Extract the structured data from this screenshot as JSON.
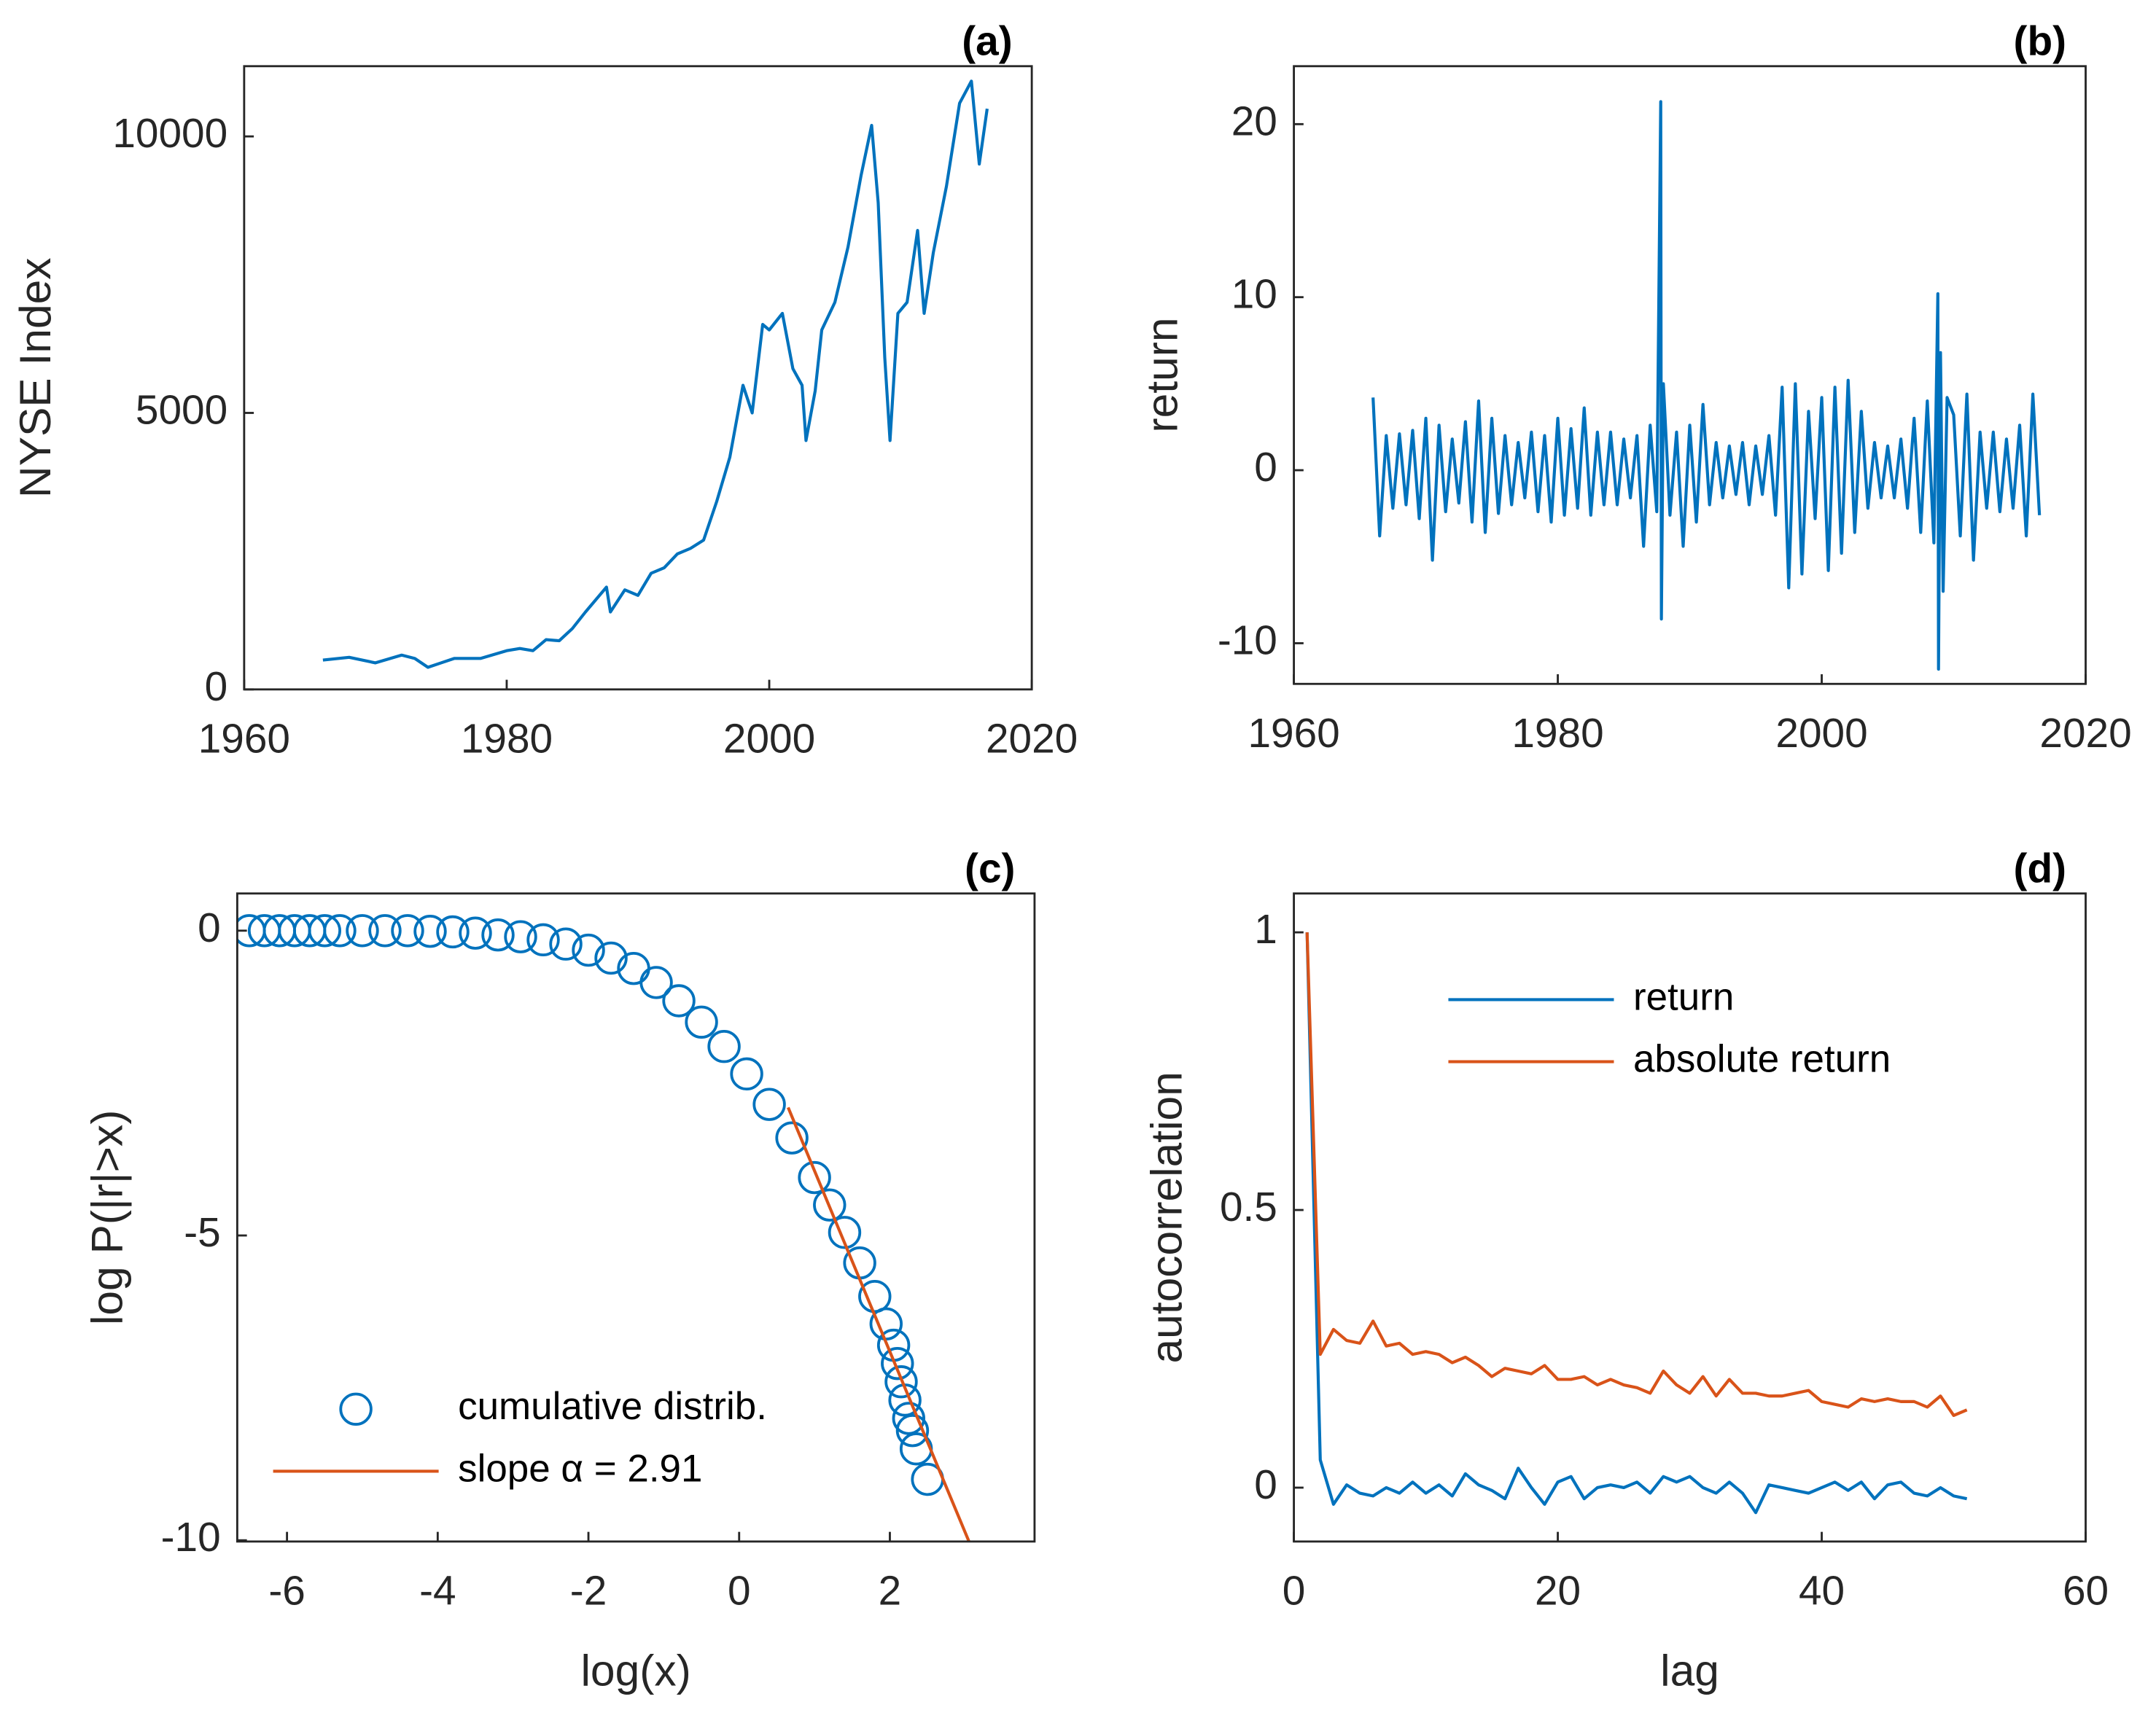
{
  "chart_data": [
    {
      "type": "line",
      "title": "(a)",
      "ylabel": "NYSE Index",
      "color": "#0072bd",
      "xlim": [
        1960,
        2020
      ],
      "xticks": [
        1960,
        1980,
        2000,
        2020
      ],
      "ylim": [
        0,
        11270
      ],
      "yticks": [
        0,
        5000,
        10000
      ],
      "x": [
        1966,
        1968,
        1970,
        1972,
        1973,
        1974,
        1975,
        1976,
        1978,
        1980,
        1981,
        1982,
        1983,
        1984,
        1985,
        1986,
        1987.6,
        1987.9,
        1989,
        1990,
        1991,
        1992,
        1993,
        1994,
        1995,
        1996,
        1997,
        1998,
        1998.7,
        1999.5,
        2000,
        2001,
        2001.8,
        2002.5,
        2002.8,
        2003.5,
        2004,
        2005,
        2006,
        2007,
        2007.8,
        2008.3,
        2008.8,
        2009.2,
        2009.8,
        2010.5,
        2011.3,
        2011.8,
        2012.5,
        2013.5,
        2014.5,
        2015.4,
        2016,
        2016.6
      ],
      "values": [
        530,
        580,
        480,
        620,
        560,
        400,
        480,
        560,
        560,
        700,
        740,
        700,
        900,
        880,
        1100,
        1400,
        1850,
        1400,
        1800,
        1700,
        2100,
        2200,
        2450,
        2550,
        2700,
        3400,
        4200,
        5500,
        5000,
        6600,
        6500,
        6800,
        5800,
        5500,
        4500,
        5400,
        6500,
        7000,
        8000,
        9300,
        10200,
        8800,
        6000,
        4500,
        6800,
        7000,
        8300,
        6800,
        7900,
        9100,
        10600,
        11000,
        9500,
        10500
      ]
    },
    {
      "type": "line",
      "title": "(b)",
      "ylabel": "return",
      "color": "#0072bd",
      "xlim": [
        1960,
        2020
      ],
      "xticks": [
        1960,
        1980,
        2000,
        2020
      ],
      "ylim": [
        -12.35,
        23.35
      ],
      "yticks": [
        -10,
        0,
        10,
        20
      ],
      "x": [
        1966,
        1966.5,
        1967,
        1967.5,
        1968,
        1968.5,
        1969,
        1969.5,
        1970,
        1970.5,
        1971,
        1971.5,
        1972,
        1972.5,
        1973,
        1973.5,
        1974,
        1974.5,
        1975,
        1975.5,
        1976,
        1976.5,
        1977,
        1977.5,
        1978,
        1978.5,
        1979,
        1979.5,
        1980,
        1980.5,
        1981,
        1981.5,
        1982,
        1982.5,
        1983,
        1983.5,
        1984,
        1984.5,
        1985,
        1985.5,
        1986,
        1986.5,
        1987,
        1987.5,
        1987.8,
        1987.85,
        1988,
        1988.5,
        1989,
        1989.5,
        1990,
        1990.5,
        1991,
        1991.5,
        1992,
        1992.5,
        1993,
        1993.5,
        1994,
        1994.5,
        1995,
        1995.5,
        1996,
        1996.5,
        1997,
        1997.5,
        1998,
        1998.5,
        1999,
        1999.5,
        2000,
        2000.5,
        2001,
        2001.5,
        2002,
        2002.5,
        2003,
        2003.5,
        2004,
        2004.5,
        2005,
        2005.5,
        2006,
        2006.5,
        2007,
        2007.5,
        2008,
        2008.5,
        2008.8,
        2008.85,
        2009,
        2009.2,
        2009.5,
        2010,
        2010.5,
        2011,
        2011.5,
        2012,
        2012.5,
        2013,
        2013.5,
        2014,
        2014.5,
        2015,
        2015.5,
        2016,
        2016.5
      ],
      "values": [
        4.2,
        -3.8,
        2.0,
        -2.2,
        2.1,
        -2.0,
        2.3,
        -2.8,
        3.0,
        -5.2,
        2.6,
        -2.4,
        1.8,
        -1.9,
        2.8,
        -3.0,
        4.0,
        -3.6,
        3.0,
        -2.5,
        2.0,
        -2.0,
        1.6,
        -1.6,
        2.2,
        -2.4,
        2.0,
        -3.0,
        3.0,
        -2.6,
        2.4,
        -2.2,
        3.6,
        -2.6,
        2.2,
        -2.0,
        2.2,
        -2.0,
        1.8,
        -1.6,
        2.0,
        -4.4,
        2.6,
        -2.4,
        21.3,
        -8.6,
        5.0,
        -2.6,
        2.2,
        -4.4,
        2.6,
        -3.0,
        3.8,
        -2.0,
        1.6,
        -1.6,
        1.4,
        -1.4,
        1.6,
        -2.0,
        1.4,
        -1.4,
        2.0,
        -2.6,
        4.8,
        -6.8,
        5.0,
        -6.0,
        3.4,
        -2.8,
        4.2,
        -5.8,
        4.8,
        -4.8,
        5.2,
        -3.6,
        3.4,
        -2.2,
        1.6,
        -1.6,
        1.4,
        -1.6,
        1.8,
        -2.2,
        3.0,
        -3.6,
        4.0,
        -4.2,
        10.2,
        -11.5,
        6.8,
        -7.0,
        4.2,
        3.2,
        -3.8,
        4.4,
        -5.2,
        2.2,
        -2.2,
        2.2,
        -2.4,
        1.8,
        -2.2,
        2.6,
        -3.8,
        4.4,
        -2.6
      ]
    },
    {
      "type": "scatter",
      "title": "(c)",
      "xlabel": "log(x)",
      "ylabel": "log P(|r|>x)",
      "legend": "lower left",
      "xlim": [
        -6.66,
        3.92
      ],
      "xticks": [
        -6,
        -4,
        -2,
        0,
        2
      ],
      "ylim": [
        -10.02,
        0.61
      ],
      "yticks": [
        -10,
        -5,
        0
      ],
      "series": [
        {
          "name": "cumulative distrib.",
          "type": "scatter",
          "color": "#0072bd",
          "x": [
            -6.5,
            -6.3,
            -6.1,
            -5.9,
            -5.7,
            -5.5,
            -5.3,
            -5.0,
            -4.7,
            -4.4,
            -4.1,
            -3.8,
            -3.5,
            -3.2,
            -2.9,
            -2.6,
            -2.3,
            -2.0,
            -1.7,
            -1.4,
            -1.1,
            -0.8,
            -0.5,
            -0.2,
            0.1,
            0.4,
            0.7,
            1.0,
            1.2,
            1.4,
            1.6,
            1.8,
            1.95,
            2.05,
            2.1,
            2.15,
            2.2,
            2.25,
            2.3,
            2.35,
            2.5
          ],
          "values": [
            0,
            0,
            0,
            0,
            0,
            0,
            0,
            0,
            0,
            0,
            -0.01,
            -0.02,
            -0.04,
            -0.07,
            -0.1,
            -0.15,
            -0.22,
            -0.32,
            -0.45,
            -0.62,
            -0.85,
            -1.15,
            -1.5,
            -1.9,
            -2.35,
            -2.85,
            -3.4,
            -4.05,
            -4.5,
            -4.95,
            -5.45,
            -6.0,
            -6.45,
            -6.8,
            -7.1,
            -7.4,
            -7.7,
            -8.0,
            -8.2,
            -8.5,
            -9.0
          ]
        },
        {
          "name": "slope α = 2.91",
          "type": "line",
          "color": "#d95319",
          "x": [
            0.65,
            3.05
          ],
          "values": [
            -2.9,
            -10.02
          ]
        }
      ]
    },
    {
      "type": "line",
      "title": "(d)",
      "xlabel": "lag",
      "ylabel": "autocorrelation",
      "legend": "upper center",
      "xlim": [
        0,
        60
      ],
      "xticks": [
        0,
        20,
        40,
        60
      ],
      "ylim": [
        -0.097,
        1.07
      ],
      "yticks": [
        0,
        0.5,
        1
      ],
      "series": [
        {
          "name": "return",
          "color": "#0072bd",
          "x": [
            1,
            2,
            3,
            4,
            5,
            6,
            7,
            8,
            9,
            10,
            11,
            12,
            13,
            14,
            15,
            16,
            17,
            18,
            19,
            20,
            21,
            22,
            23,
            24,
            25,
            26,
            27,
            28,
            29,
            30,
            31,
            32,
            33,
            34,
            35,
            36,
            37,
            38,
            39,
            40,
            41,
            42,
            43,
            44,
            45,
            46,
            47,
            48,
            49,
            50,
            51
          ],
          "values": [
            1,
            0.05,
            -0.03,
            0.005,
            -0.01,
            -0.015,
            0,
            -0.01,
            0.01,
            -0.01,
            0.005,
            -0.015,
            0.025,
            0.005,
            -0.005,
            -0.02,
            0.035,
            0,
            -0.03,
            0.01,
            0.02,
            -0.02,
            0,
            0.005,
            0,
            0.01,
            -0.01,
            0.02,
            0.01,
            0.02,
            0,
            -0.01,
            0.01,
            -0.01,
            -0.045,
            0.005,
            0,
            -0.005,
            -0.01,
            0,
            0.01,
            -0.005,
            0.01,
            -0.02,
            0.005,
            0.01,
            -0.01,
            -0.015,
            0,
            -0.015,
            -0.02
          ]
        },
        {
          "name": "absolute return",
          "color": "#d95319",
          "x": [
            1,
            2,
            3,
            4,
            5,
            6,
            7,
            8,
            9,
            10,
            11,
            12,
            13,
            14,
            15,
            16,
            17,
            18,
            19,
            20,
            21,
            22,
            23,
            24,
            25,
            26,
            27,
            28,
            29,
            30,
            31,
            32,
            33,
            34,
            35,
            36,
            37,
            38,
            39,
            40,
            41,
            42,
            43,
            44,
            45,
            46,
            47,
            48,
            49,
            50,
            51
          ],
          "values": [
            1,
            0.24,
            0.285,
            0.265,
            0.26,
            0.3,
            0.255,
            0.26,
            0.24,
            0.245,
            0.24,
            0.225,
            0.235,
            0.22,
            0.2,
            0.215,
            0.21,
            0.205,
            0.22,
            0.195,
            0.195,
            0.2,
            0.185,
            0.195,
            0.185,
            0.18,
            0.17,
            0.21,
            0.185,
            0.17,
            0.2,
            0.165,
            0.195,
            0.17,
            0.17,
            0.165,
            0.165,
            0.17,
            0.175,
            0.155,
            0.15,
            0.145,
            0.16,
            0.155,
            0.16,
            0.155,
            0.155,
            0.145,
            0.165,
            0.13,
            0.14
          ]
        }
      ]
    }
  ]
}
